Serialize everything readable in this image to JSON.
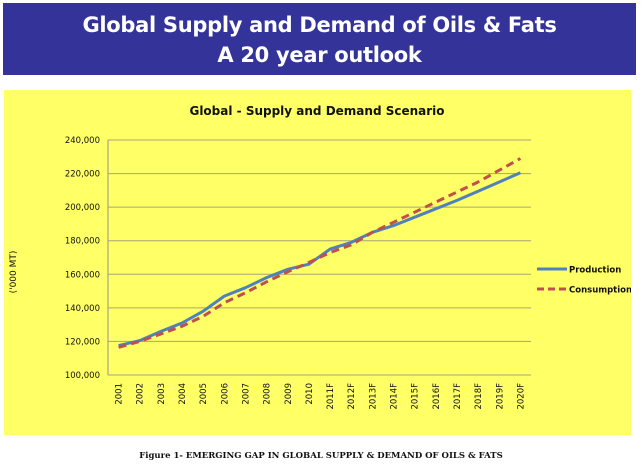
{
  "banner": {
    "line1": "Global Supply and Demand of Oils & Fats",
    "line2": "A 20 year outlook"
  },
  "caption": "Figure 1- EMERGING GAP IN GLOBAL SUPPLY & DEMAND OF OILS & FATS",
  "colors": {
    "banner": "#333399",
    "chart_bg": "#ffff66",
    "production": "#4f81bd",
    "consumption": "#c0504d",
    "grid": "#a6a67a"
  },
  "chart_data": {
    "type": "line",
    "title": "Global - Supply and Demand Scenario",
    "xlabel": "",
    "ylabel": "('000 MT)",
    "ylim": [
      100000,
      240000
    ],
    "ytick_values": [
      100000,
      120000,
      140000,
      160000,
      180000,
      200000,
      220000,
      240000
    ],
    "ytick_labels": [
      "100,000",
      "120,000",
      "140,000",
      "160,000",
      "180,000",
      "200,000",
      "220,000",
      "240,000"
    ],
    "grid": true,
    "legend_position": "right",
    "categories": [
      "2001",
      "2002",
      "2003",
      "2004",
      "2005",
      "2006",
      "2007",
      "2008",
      "2009",
      "2010",
      "2011F",
      "2012F",
      "2013F",
      "2014F",
      "2015F",
      "2016F",
      "2017F",
      "2018F",
      "2019F",
      "2020F"
    ],
    "series": [
      {
        "name": "Production",
        "style": "solid",
        "values": [
          117500,
          120500,
          126000,
          131000,
          138000,
          147000,
          152000,
          158000,
          163000,
          166000,
          175000,
          179000,
          185000,
          189000,
          194000,
          199000,
          204000,
          209500,
          215000,
          220500
        ]
      },
      {
        "name": "Consumption",
        "style": "dashed",
        "values": [
          116500,
          120000,
          124500,
          129000,
          135000,
          143000,
          149000,
          155500,
          161500,
          167000,
          173000,
          177500,
          185000,
          191000,
          197000,
          203000,
          209000,
          215000,
          222000,
          229000
        ]
      }
    ]
  }
}
